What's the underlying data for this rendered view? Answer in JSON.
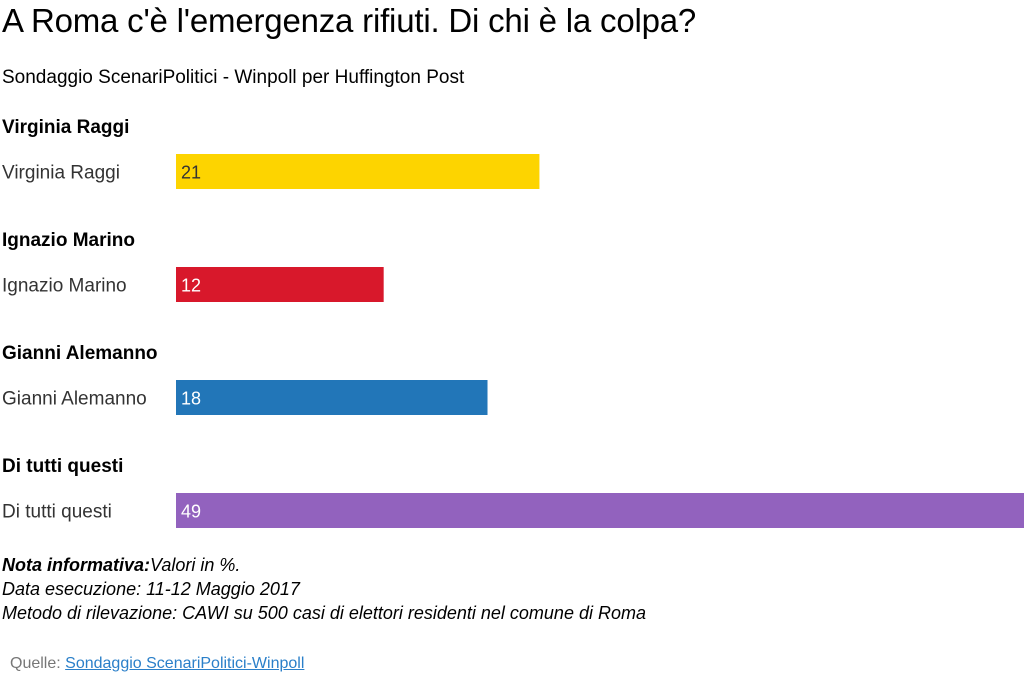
{
  "title": "A Roma c'è l'emergenza rifiuti. Di chi è la colpa?",
  "subtitle": "Sondaggio ScenariPolitici - Winpoll per Huffington Post",
  "chart_data": {
    "type": "bar",
    "orientation": "horizontal",
    "xlim": [
      0,
      49
    ],
    "grid": false,
    "legend": "none",
    "groups": [
      {
        "title": "Virginia Raggi",
        "category": "Virginia Raggi",
        "value": 21,
        "color": "#fdd400"
      },
      {
        "title": "Ignazio Marino",
        "category": "Ignazio Marino",
        "value": 12,
        "color": "#d8182b"
      },
      {
        "title": "Gianni Alemanno",
        "category": "Gianni Alemanno",
        "value": 18,
        "color": "#2276b8"
      },
      {
        "title": "Di tutti questi",
        "category": "Di tutti questi",
        "value": 49,
        "color": "#9262be"
      }
    ],
    "label_colors": [
      "#333333",
      "#ffffff",
      "#ffffff",
      "#ffffff"
    ]
  },
  "notes": {
    "nota_label": "Nota informativa:",
    "nota_text": "Valori in %.",
    "data_line": "Data esecuzione: 11-12 Maggio 2017",
    "metodo_line": "Metodo di rilevazione: CAWI su 500 casi di elettori residenti nel comune di Roma"
  },
  "source": {
    "label": "Quelle:",
    "link_text": "Sondaggio ScenariPolitici-Winpoll"
  }
}
